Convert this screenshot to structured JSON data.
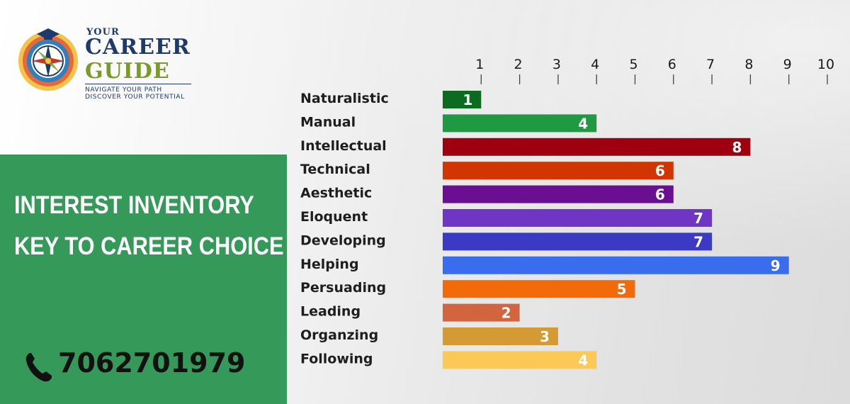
{
  "brand": {
    "logo_line1": "YOUR",
    "logo_line2": "CAREER",
    "logo_line3": "GUIDE",
    "tagline1": "NAVIGATE YOUR PATH",
    "tagline2": "DISCOVER YOUR POTENTIAL",
    "colors": {
      "navy": "#1d3a6b",
      "olive": "#7a9a2c"
    }
  },
  "panel": {
    "heading_line1": "INTEREST INVENTORY",
    "heading_line2": "KEY TO CAREER CHOICE",
    "phone": "7062701979",
    "phone_icon": "phone-icon",
    "color": "#35995a"
  },
  "chart_data": {
    "type": "bar",
    "orientation": "horizontal",
    "categories": [
      "Naturalistic",
      "Manual",
      "Intellectual",
      "Technical",
      "Aesthetic",
      "Eloquent",
      "Developing",
      "Helping",
      "Persuading",
      "Leading",
      "Organzing",
      "Following"
    ],
    "values": [
      1,
      4,
      8,
      6,
      6,
      7,
      7,
      9,
      5,
      2,
      3,
      4
    ],
    "colors": [
      "#0b6b1f",
      "#1f9a43",
      "#9e0010",
      "#d13500",
      "#6a0f92",
      "#6f36c6",
      "#3a3ac4",
      "#3a6dee",
      "#f26a0a",
      "#d26440",
      "#d49a34",
      "#fcc955"
    ],
    "x_ticks": [
      1,
      2,
      3,
      4,
      5,
      6,
      7,
      8,
      9,
      10
    ],
    "xlim": [
      0,
      10
    ],
    "data_labels": true,
    "title": "",
    "xlabel": "",
    "ylabel": "",
    "grid": false,
    "legend": "none"
  }
}
